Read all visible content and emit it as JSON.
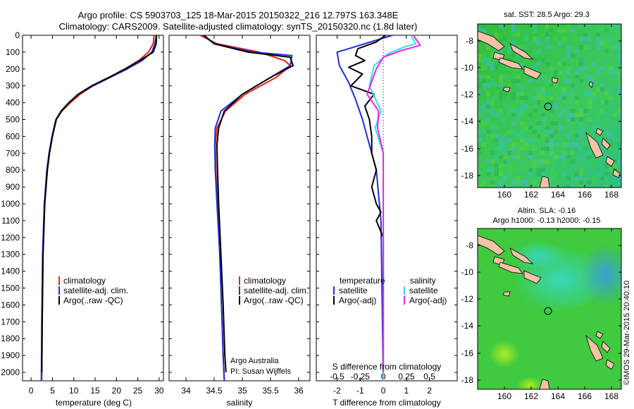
{
  "header": {
    "line1": "Argo profile: CS 5903703_125 18-Mar-2015 20150322_216 12.797S 163.348E",
    "line2": "Climatology: CARS2009. Satellite-adjusted climatology: synTS_20150320.nc (1.8d later)"
  },
  "colors": {
    "climatology": "#e8231b",
    "satellite": "#1f2ed8",
    "argo": "#000000",
    "sat_salinity": "#2ee0e8",
    "argo_salinity": "#ee22ee",
    "land": "#f4c2a6"
  },
  "chart_data": [
    {
      "type": "line",
      "id": "temperature",
      "xlabel": "temperature (deg C)",
      "xlim": [
        -2,
        31
      ],
      "ylim": [
        2050,
        0
      ],
      "xticks": [
        0,
        5,
        10,
        15,
        20,
        25,
        30
      ],
      "yticks": [
        0,
        100,
        200,
        300,
        400,
        500,
        600,
        700,
        800,
        900,
        1000,
        1100,
        1200,
        1300,
        1400,
        1500,
        1600,
        1700,
        1800,
        1900,
        2000
      ],
      "legend": [
        "climatology",
        "satellite-adj. clim.",
        "Argo(..raw -QC)"
      ],
      "series": [
        {
          "name": "climatology",
          "x": [
            28.8,
            28.6,
            27.5,
            25.2,
            22.0,
            18.5,
            14.5,
            11.5,
            9.2,
            7.2,
            5.9,
            5.0,
            4.3,
            3.8,
            3.2,
            2.8,
            2.6,
            2.5
          ],
          "y": [
            0,
            50,
            100,
            150,
            200,
            250,
            300,
            350,
            400,
            450,
            500,
            600,
            700,
            800,
            1000,
            1300,
            1700,
            2050
          ]
        },
        {
          "name": "satellite-adj. clim.",
          "x": [
            29.3,
            29.0,
            28.3,
            26.0,
            22.5,
            18.5,
            14.5,
            11.0,
            8.8,
            7.0,
            5.8,
            4.9,
            4.2,
            3.7,
            3.1,
            2.7,
            2.5,
            2.4
          ],
          "y": [
            0,
            50,
            100,
            150,
            200,
            250,
            300,
            350,
            400,
            450,
            500,
            600,
            700,
            800,
            1000,
            1300,
            1700,
            2050
          ]
        },
        {
          "name": "Argo(..raw -QC)",
          "x": [
            29.4,
            29.3,
            28.6,
            25.5,
            22.0,
            18.2,
            14.2,
            11.0,
            8.9,
            7.1,
            5.9,
            5.0,
            4.3,
            3.8,
            3.2,
            2.8,
            2.6,
            2.5
          ],
          "y": [
            0,
            50,
            100,
            150,
            200,
            250,
            300,
            350,
            400,
            450,
            500,
            600,
            700,
            800,
            1000,
            1300,
            1700,
            2000
          ]
        }
      ]
    },
    {
      "type": "line",
      "id": "salinity",
      "xlabel": "salinity",
      "xlim": [
        33.7,
        36.2
      ],
      "ylim": [
        2050,
        0
      ],
      "xticks": [
        34,
        34.5,
        35,
        35.5,
        36
      ],
      "legend": [
        "climatology",
        "satellite-adj. clim.",
        "Argo(..raw -QC)"
      ],
      "annotation": [
        "Argo Australia",
        "PI: Susan Wijffels"
      ],
      "series": [
        {
          "name": "climatology",
          "x": [
            34.25,
            34.55,
            35.3,
            35.75,
            35.85,
            35.6,
            35.05,
            34.7,
            34.55,
            34.52,
            34.53,
            34.56,
            34.6,
            34.63,
            34.66,
            34.68
          ],
          "y": [
            0,
            50,
            100,
            150,
            180,
            250,
            350,
            450,
            550,
            650,
            800,
            1000,
            1300,
            1600,
            1900,
            2050
          ]
        },
        {
          "name": "satellite-adj. clim.",
          "x": [
            34.3,
            34.5,
            35.2,
            35.88,
            35.85,
            35.5,
            35.0,
            34.62,
            34.52,
            34.51,
            34.52,
            34.55,
            34.6,
            34.63,
            34.66,
            34.68
          ],
          "y": [
            0,
            50,
            100,
            120,
            180,
            250,
            350,
            450,
            550,
            650,
            800,
            1000,
            1300,
            1600,
            1900,
            2050
          ]
        },
        {
          "name": "Argo(..raw -QC)",
          "x": [
            34.32,
            34.5,
            35.1,
            35.85,
            35.9,
            35.5,
            35.0,
            34.68,
            34.58,
            34.55,
            34.56,
            34.58,
            34.62,
            34.66,
            34.69,
            34.71
          ],
          "y": [
            0,
            50,
            100,
            130,
            180,
            250,
            350,
            450,
            550,
            650,
            800,
            1000,
            1300,
            1600,
            1900,
            2000
          ]
        }
      ]
    },
    {
      "type": "line",
      "id": "difference",
      "xlabel": "T difference from climatology",
      "xlabel_top": "S difference from climatology",
      "xlim": [
        -2.9,
        3.2
      ],
      "ylim": [
        2050,
        0
      ],
      "xticks": [
        -2,
        -1,
        0,
        1,
        2
      ],
      "sticks": [
        -0.5,
        -0.25,
        0,
        0.25,
        0.5
      ],
      "legend_titles": [
        "temperature",
        "salinity"
      ],
      "legend": [
        "satellite",
        "Argo(-adj)",
        "satellite",
        "Argo(-adj)"
      ],
      "series": [
        {
          "name": "temperature satellite",
          "x": [
            0.4,
            -0.8,
            -1.5,
            -2.0,
            -1.9,
            -1.5,
            -1.2,
            -0.9,
            -0.6,
            -0.3,
            -0.1,
            0.0
          ],
          "y": [
            0,
            50,
            80,
            100,
            180,
            280,
            380,
            500,
            650,
            800,
            1100,
            2050
          ]
        },
        {
          "name": "temperature Argo(-adj)",
          "x": [
            0.1,
            -0.3,
            -1.1,
            -1.2,
            -0.8,
            -1.5,
            -0.9,
            -1.4,
            -0.4,
            -0.8,
            -0.6,
            -0.5,
            -0.5,
            -0.3,
            -0.5,
            -0.3,
            -0.1,
            -0.3,
            0.0,
            0.0
          ],
          "y": [
            0,
            40,
            80,
            120,
            150,
            190,
            230,
            300,
            350,
            420,
            500,
            600,
            700,
            800,
            900,
            1000,
            1050,
            1100,
            1200,
            2000
          ]
        },
        {
          "name": "salinity satellite",
          "x": [
            1.2,
            1.4,
            0.9,
            0.2,
            -0.4,
            -0.6,
            -0.1,
            -0.35,
            0.0,
            0.0
          ],
          "y": [
            0,
            50,
            70,
            110,
            180,
            300,
            450,
            550,
            700,
            2050
          ]
        },
        {
          "name": "salinity Argo(-adj)",
          "x": [
            1.3,
            1.6,
            0.8,
            0.0,
            -0.3,
            -0.7,
            -0.2,
            -0.25,
            0.0,
            0.0
          ],
          "y": [
            0,
            60,
            90,
            130,
            200,
            350,
            450,
            550,
            700,
            2000
          ]
        }
      ]
    }
  ],
  "maps": {
    "lon_ticks": [
      "160",
      "162",
      "164",
      "166",
      "168"
    ],
    "lat_ticks": [
      "-8",
      "-10",
      "-12",
      "-14",
      "-16",
      "-18"
    ],
    "sst": {
      "title": "sat. SST: 28.5 Argo: 29.3"
    },
    "sla": {
      "title1": "Altim. SLA: -0.16",
      "title2": "Argo h1000: -0.13 h2000: -0.15"
    }
  },
  "footer": {
    "credit": "©IMOS 29-Mar-2015 20:40:10"
  }
}
